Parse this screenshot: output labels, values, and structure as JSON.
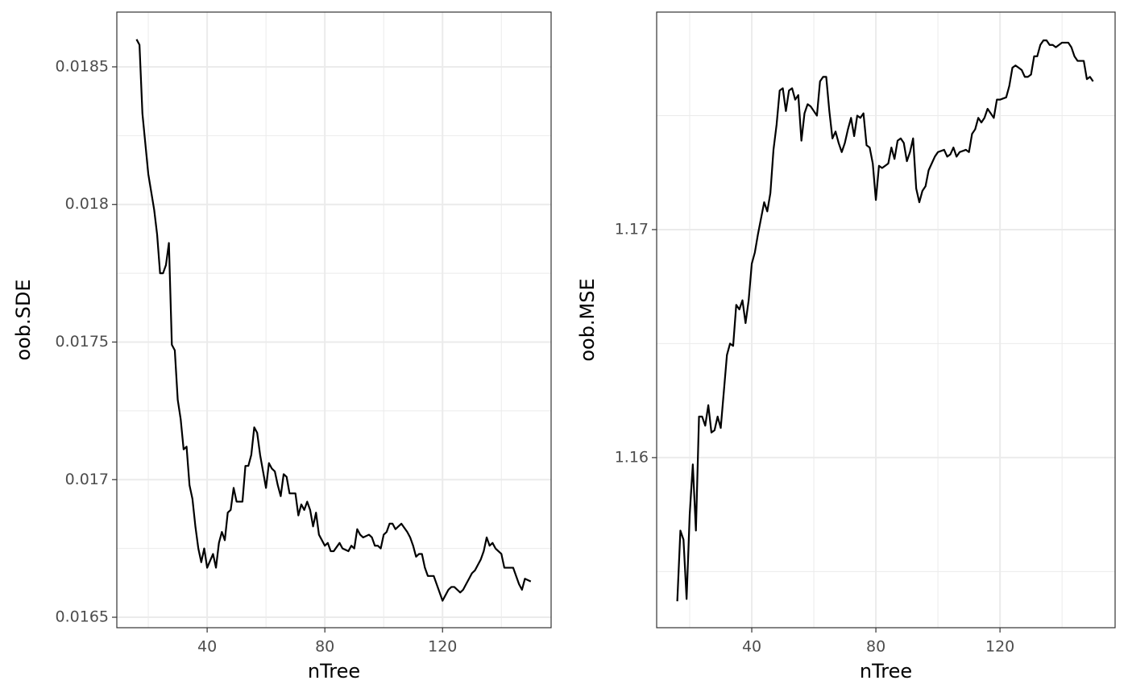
{
  "chart_data": [
    {
      "type": "line",
      "xlabel": "nTree",
      "ylabel": "oob.SDE",
      "color": "#000000",
      "grid": true,
      "xlim": [
        9.3,
        156.9
      ],
      "xticks": [
        40,
        80,
        120
      ],
      "minor_xticks": [
        20,
        60,
        100,
        140
      ],
      "ylim": [
        0.016462,
        0.018699
      ],
      "yticks": [
        0.0165,
        0.017,
        0.0175,
        0.018,
        0.0185
      ],
      "minor_yticks": [
        0.01675,
        0.01725,
        0.01775,
        0.01825
      ],
      "x": [
        16,
        17,
        18,
        20,
        22,
        23,
        24,
        25,
        26,
        27,
        28,
        29,
        30,
        31,
        32,
        33,
        34,
        35,
        36,
        37,
        38,
        39,
        40,
        42,
        43,
        44,
        45,
        46,
        47,
        48,
        49,
        50,
        52,
        53,
        54,
        55,
        56,
        57,
        58,
        59,
        60,
        61,
        62,
        63,
        64,
        65,
        66,
        67,
        68,
        70,
        71,
        72,
        73,
        74,
        75,
        76,
        77,
        78,
        80,
        81,
        82,
        83,
        85,
        86,
        88,
        89,
        90,
        91,
        92,
        93,
        95,
        96,
        97,
        98,
        99,
        100,
        101,
        102,
        103,
        104,
        106,
        108,
        109,
        110,
        111,
        112,
        113,
        114,
        115,
        116,
        117,
        118,
        120,
        121,
        122,
        123,
        124,
        125,
        126,
        127,
        128,
        129,
        130,
        131,
        132,
        133,
        134,
        135,
        136,
        137,
        138,
        139,
        140,
        141,
        142,
        143,
        144,
        145,
        146,
        147,
        148,
        150
      ],
      "values": [
        0.0186,
        0.01858,
        0.01833,
        0.01811,
        0.01798,
        0.01789,
        0.01775,
        0.01775,
        0.01778,
        0.01786,
        0.01749,
        0.01747,
        0.01729,
        0.01722,
        0.01711,
        0.01712,
        0.01698,
        0.01693,
        0.01683,
        0.01675,
        0.0167,
        0.01675,
        0.01668,
        0.01673,
        0.01668,
        0.01677,
        0.01681,
        0.01678,
        0.01688,
        0.01689,
        0.01697,
        0.01692,
        0.01692,
        0.01705,
        0.01705,
        0.01709,
        0.01719,
        0.01717,
        0.01709,
        0.01703,
        0.01697,
        0.01706,
        0.01704,
        0.01703,
        0.01698,
        0.01694,
        0.01702,
        0.01701,
        0.01695,
        0.01695,
        0.01687,
        0.01691,
        0.01689,
        0.01692,
        0.01689,
        0.01683,
        0.01688,
        0.0168,
        0.01676,
        0.01677,
        0.01674,
        0.01674,
        0.01677,
        0.01675,
        0.01674,
        0.01676,
        0.01675,
        0.01682,
        0.0168,
        0.01679,
        0.0168,
        0.01679,
        0.01676,
        0.01676,
        0.01675,
        0.0168,
        0.01681,
        0.01684,
        0.01684,
        0.01682,
        0.01684,
        0.01681,
        0.01679,
        0.01676,
        0.01672,
        0.01673,
        0.01673,
        0.01668,
        0.01665,
        0.01665,
        0.01665,
        0.01662,
        0.01656,
        0.01658,
        0.0166,
        0.01661,
        0.01661,
        0.0166,
        0.01659,
        0.0166,
        0.01662,
        0.01664,
        0.01666,
        0.01667,
        0.01669,
        0.01671,
        0.01674,
        0.01679,
        0.01676,
        0.01677,
        0.01675,
        0.01674,
        0.01673,
        0.01668,
        0.01668,
        0.01668,
        0.01668,
        0.01665,
        0.01662,
        0.0166,
        0.01664,
        0.01663
      ]
    },
    {
      "type": "line",
      "xlabel": "nTree",
      "ylabel": "oob.MSE",
      "color": "#000000",
      "grid": true,
      "xlim": [
        9.35,
        157.1
      ],
      "xticks": [
        40,
        80,
        120
      ],
      "minor_xticks": [
        20,
        60,
        100,
        140
      ],
      "ylim": [
        1.15254,
        1.17954
      ],
      "yticks": [
        1.16,
        1.17
      ],
      "minor_yticks": [
        1.155,
        1.165,
        1.175
      ],
      "x": [
        16,
        17,
        18,
        19,
        20,
        21,
        22,
        23,
        24,
        25,
        26,
        27,
        28,
        29,
        30,
        31,
        32,
        33,
        34,
        35,
        36,
        37,
        38,
        39,
        40,
        41,
        42,
        43,
        44,
        45,
        46,
        47,
        48,
        49,
        50,
        51,
        52,
        53,
        54,
        55,
        56,
        57,
        58,
        59,
        60,
        61,
        62,
        63,
        64,
        65,
        66,
        67,
        68,
        69,
        70,
        71,
        72,
        73,
        74,
        75,
        76,
        77,
        78,
        79,
        80,
        81,
        82,
        83,
        84,
        85,
        86,
        87,
        88,
        89,
        90,
        91,
        92,
        93,
        94,
        95,
        96,
        97,
        98,
        99,
        100,
        102,
        103,
        104,
        105,
        106,
        107,
        109,
        110,
        111,
        112,
        113,
        114,
        115,
        116,
        117,
        118,
        119,
        120,
        122,
        123,
        124,
        125,
        126,
        127,
        128,
        129,
        130,
        131,
        132,
        133,
        134,
        135,
        136,
        137,
        138,
        139,
        140,
        141,
        142,
        143,
        144,
        145,
        146,
        147,
        148,
        149,
        150
      ],
      "values": [
        1.1537,
        1.1568,
        1.1564,
        1.1538,
        1.1575,
        1.1597,
        1.1568,
        1.1618,
        1.1618,
        1.1614,
        1.1623,
        1.1611,
        1.1612,
        1.1618,
        1.1613,
        1.1629,
        1.1645,
        1.165,
        1.1649,
        1.1667,
        1.1665,
        1.1669,
        1.1659,
        1.1669,
        1.1685,
        1.169,
        1.1698,
        1.1705,
        1.1712,
        1.1708,
        1.1716,
        1.1735,
        1.1746,
        1.1761,
        1.1762,
        1.1752,
        1.1761,
        1.1762,
        1.1757,
        1.1759,
        1.1739,
        1.1751,
        1.1755,
        1.1754,
        1.1752,
        1.175,
        1.1765,
        1.1767,
        1.1767,
        1.1752,
        1.174,
        1.1743,
        1.1738,
        1.1734,
        1.1738,
        1.1744,
        1.1749,
        1.1741,
        1.175,
        1.1749,
        1.1751,
        1.1737,
        1.1736,
        1.1729,
        1.1713,
        1.1728,
        1.1727,
        1.1728,
        1.1729,
        1.1736,
        1.1731,
        1.1739,
        1.174,
        1.1738,
        1.173,
        1.1734,
        1.174,
        1.1718,
        1.1712,
        1.1717,
        1.1719,
        1.1726,
        1.1729,
        1.1732,
        1.1734,
        1.1735,
        1.1732,
        1.1733,
        1.1736,
        1.1732,
        1.1734,
        1.1735,
        1.1734,
        1.1742,
        1.1744,
        1.1749,
        1.1747,
        1.1749,
        1.1753,
        1.1751,
        1.1749,
        1.1757,
        1.1757,
        1.1758,
        1.1763,
        1.1771,
        1.1772,
        1.1771,
        1.177,
        1.1767,
        1.1767,
        1.1768,
        1.1776,
        1.1776,
        1.1781,
        1.1783,
        1.1783,
        1.1781,
        1.1781,
        1.178,
        1.1781,
        1.1782,
        1.1782,
        1.1782,
        1.178,
        1.1776,
        1.1774,
        1.1774,
        1.1774,
        1.1766,
        1.1767,
        1.1765
      ]
    }
  ]
}
